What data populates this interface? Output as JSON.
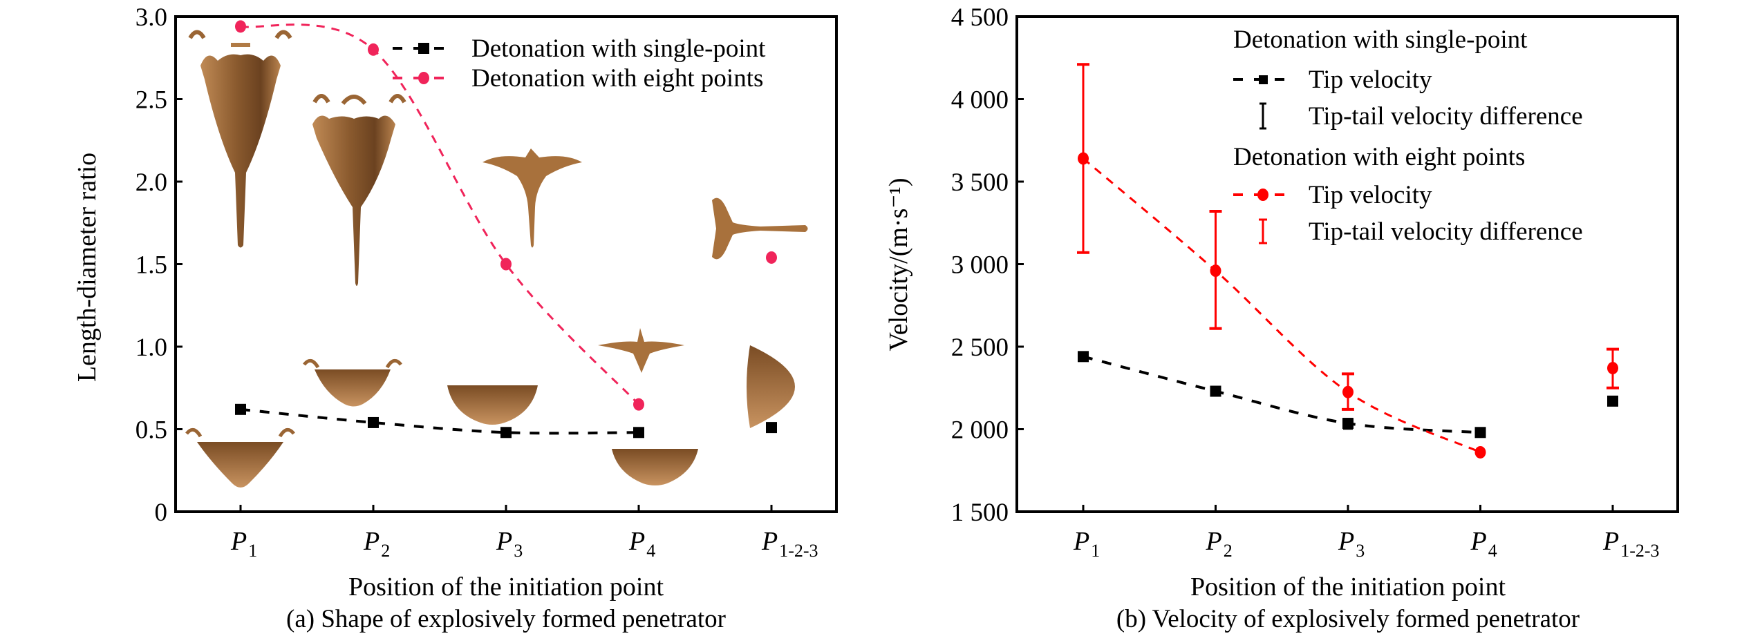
{
  "chart_data": [
    {
      "id": "a",
      "type": "line",
      "title": "",
      "caption": "(a) Shape of explosively formed penetrator",
      "xlabel": "Position of the initiation point",
      "ylabel": "Length-diameter ratio",
      "categories": [
        {
          "main": "P",
          "sub": "1"
        },
        {
          "main": "P",
          "sub": "2"
        },
        {
          "main": "P",
          "sub": "3"
        },
        {
          "main": "P",
          "sub": "4"
        },
        {
          "main": "P",
          "sub": "1-2-3"
        }
      ],
      "ylim": [
        0,
        3.0
      ],
      "yticks": [
        0,
        0.5,
        1.0,
        1.5,
        2.0,
        2.5,
        3.0
      ],
      "ytick_labels": [
        "0",
        "0.5",
        "1.0",
        "1.5",
        "2.0",
        "2.5",
        "3.0"
      ],
      "grid": false,
      "legend_position": "top-right",
      "series": [
        {
          "name": "Detonation with single-point",
          "marker": "square",
          "line": "dashed",
          "color": "#000000",
          "values": [
            0.62,
            0.54,
            0.48,
            0.48,
            0.51
          ],
          "fit_through": [
            0,
            1,
            2,
            3
          ]
        },
        {
          "name": "Detonation with eight points",
          "marker": "circle",
          "line": "dashed",
          "color": "#f0245a",
          "values": [
            2.94,
            2.8,
            1.5,
            0.65,
            1.54
          ],
          "fit_through": [
            0,
            1,
            2,
            3
          ]
        }
      ],
      "annotations": [
        {
          "type": "penetrator-image",
          "label": "single-point P1 shape"
        },
        {
          "type": "penetrator-image",
          "label": "eight-point P1 shape"
        }
      ]
    },
    {
      "id": "b",
      "type": "line",
      "title": "",
      "caption": "(b) Velocity of explosively formed penetrator",
      "xlabel": "Position of the initiation point",
      "ylabel": "Velocity/(m·s⁻¹)",
      "categories": [
        {
          "main": "P",
          "sub": "1"
        },
        {
          "main": "P",
          "sub": "2"
        },
        {
          "main": "P",
          "sub": "3"
        },
        {
          "main": "P",
          "sub": "4"
        },
        {
          "main": "P",
          "sub": "1-2-3"
        }
      ],
      "ylim": [
        1500,
        4500
      ],
      "yticks": [
        1500,
        2000,
        2500,
        3000,
        3500,
        4000,
        4500
      ],
      "ytick_labels": [
        "1 500",
        "2 000",
        "2 500",
        "3 000",
        "3 500",
        "4 000",
        "4 500"
      ],
      "grid": false,
      "legend_position": "top-right",
      "legend_groups": [
        {
          "title": "Detonation with single-point",
          "entries": [
            {
              "label": "Tip velocity",
              "kind": "line-square",
              "color": "#000000"
            },
            {
              "label": "Tip-tail velocity difference",
              "kind": "errorbar",
              "color": "#000000"
            }
          ]
        },
        {
          "title": "Detonation with eight points",
          "entries": [
            {
              "label": "Tip velocity",
              "kind": "line-circle",
              "color": "#ff0000"
            },
            {
              "label": "Tip-tail velocity difference",
              "kind": "errorbar",
              "color": "#ff0000"
            }
          ]
        }
      ],
      "series": [
        {
          "name": "Detonation with single-point – Tip velocity",
          "marker": "square",
          "line": "dashed",
          "color": "#000000",
          "values": [
            2440,
            2230,
            2035,
            1980,
            2170
          ],
          "err_low": [
            2425,
            2210,
            2005,
            1960,
            2150
          ],
          "err_high": [
            2455,
            2250,
            2060,
            2000,
            2190
          ],
          "fit_through": [
            0,
            1,
            2,
            3
          ]
        },
        {
          "name": "Detonation with eight points – Tip velocity",
          "marker": "circle",
          "line": "dashed",
          "color": "#ff0000",
          "values": [
            3640,
            2960,
            2225,
            1860,
            2370
          ],
          "err_low": [
            3070,
            2610,
            2120,
            null,
            2250
          ],
          "err_high": [
            4210,
            3320,
            2335,
            null,
            2485
          ],
          "fit_through": [
            0,
            1,
            2,
            3
          ]
        }
      ]
    }
  ]
}
